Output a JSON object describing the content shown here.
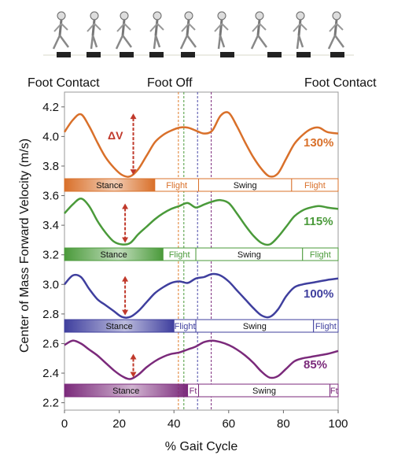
{
  "chart_data": {
    "type": "line",
    "xlabel": "% Gait Cycle",
    "ylabel": "Center of Mass Forward Velocity (m/s)",
    "xlim": [
      0,
      100
    ],
    "ylim": [
      2.15,
      4.3
    ],
    "x_ticks": [
      "0",
      "20",
      "40",
      "60",
      "80",
      "100"
    ],
    "y_ticks": [
      "2.2",
      "2.4",
      "2.6",
      "2.8",
      "3.0",
      "3.2",
      "3.4",
      "3.6",
      "3.8",
      "4.0",
      "4.2"
    ],
    "event_labels": [
      "Foot Contact",
      "Foot Off",
      "Foot Contact"
    ],
    "annotation": "ΔV",
    "foot_off_lines": [
      {
        "x": 33,
        "color": "#e07b2a"
      },
      {
        "x": 35,
        "color": "#4a9a3a"
      },
      {
        "x": 40,
        "color": "#4b4aa8"
      },
      {
        "x": 45,
        "color": "#7b2a7b"
      }
    ],
    "series": [
      {
        "name": "130%",
        "color": "#d9702a",
        "x": [
          0,
          3,
          6,
          9,
          12,
          15,
          18,
          21,
          24,
          27,
          30,
          33,
          36,
          39,
          42,
          45,
          48,
          51,
          54,
          57,
          60,
          63,
          66,
          69,
          72,
          75,
          78,
          81,
          84,
          87,
          90,
          93,
          96,
          100
        ],
        "values": [
          4.03,
          4.11,
          4.15,
          4.07,
          3.96,
          3.86,
          3.79,
          3.74,
          3.73,
          3.78,
          3.87,
          3.96,
          4.01,
          4.04,
          4.06,
          4.06,
          4.04,
          4.02,
          4.04,
          4.14,
          4.16,
          4.07,
          3.96,
          3.86,
          3.78,
          3.73,
          3.75,
          3.85,
          3.95,
          4.01,
          4.05,
          4.06,
          4.03,
          4.02
        ],
        "label": "130%",
        "phases": [
          {
            "label": "Stance",
            "start": 0,
            "end": 33,
            "filled": true
          },
          {
            "label": "Flight",
            "start": 33,
            "end": 49,
            "filled": false
          },
          {
            "label": "Swing",
            "start": 49,
            "end": 83,
            "filled": false
          },
          {
            "label": "Flight",
            "start": 83,
            "end": 100,
            "filled": false
          }
        ]
      },
      {
        "name": "115%",
        "color": "#4a9a3a",
        "x": [
          0,
          3,
          6,
          9,
          12,
          15,
          18,
          21,
          24,
          27,
          30,
          33,
          36,
          39,
          42,
          45,
          48,
          51,
          54,
          57,
          60,
          63,
          66,
          69,
          72,
          75,
          78,
          81,
          84,
          87,
          90,
          93,
          96,
          100
        ],
        "values": [
          3.48,
          3.54,
          3.58,
          3.53,
          3.43,
          3.35,
          3.29,
          3.27,
          3.28,
          3.34,
          3.39,
          3.44,
          3.48,
          3.51,
          3.53,
          3.55,
          3.52,
          3.54,
          3.56,
          3.57,
          3.55,
          3.48,
          3.4,
          3.33,
          3.28,
          3.27,
          3.32,
          3.39,
          3.46,
          3.5,
          3.52,
          3.53,
          3.52,
          3.51
        ],
        "label": "115%",
        "phases": [
          {
            "label": "Stance",
            "start": 0,
            "end": 36,
            "filled": true
          },
          {
            "label": "Flight",
            "start": 36,
            "end": 48,
            "filled": false
          },
          {
            "label": "Swing",
            "start": 48,
            "end": 87,
            "filled": false
          },
          {
            "label": "Flight",
            "start": 87,
            "end": 100,
            "filled": false
          }
        ]
      },
      {
        "name": "100%",
        "color": "#3f3f9e",
        "x": [
          0,
          3,
          6,
          9,
          12,
          15,
          18,
          21,
          24,
          27,
          30,
          33,
          36,
          39,
          42,
          45,
          48,
          51,
          54,
          57,
          60,
          63,
          66,
          69,
          72,
          75,
          78,
          81,
          84,
          87,
          90,
          93,
          96,
          100
        ],
        "values": [
          3.0,
          3.06,
          3.05,
          2.97,
          2.9,
          2.86,
          2.82,
          2.78,
          2.78,
          2.82,
          2.88,
          2.94,
          2.98,
          3.01,
          3.02,
          3.01,
          3.04,
          3.05,
          3.07,
          3.06,
          3.02,
          2.96,
          2.9,
          2.84,
          2.79,
          2.78,
          2.83,
          2.92,
          2.98,
          3.0,
          3.01,
          3.02,
          3.03,
          3.04
        ],
        "label": "100%",
        "phases": [
          {
            "label": "Stance",
            "start": 0,
            "end": 40,
            "filled": true
          },
          {
            "label": "Flight",
            "start": 40,
            "end": 48,
            "filled": false
          },
          {
            "label": "Swing",
            "start": 48,
            "end": 91,
            "filled": false
          },
          {
            "label": "Flight",
            "start": 91,
            "end": 100,
            "filled": false
          }
        ]
      },
      {
        "name": "85%",
        "color": "#7b2a7b",
        "x": [
          0,
          3,
          6,
          9,
          12,
          15,
          18,
          21,
          24,
          27,
          30,
          33,
          36,
          39,
          42,
          45,
          48,
          51,
          54,
          57,
          60,
          63,
          66,
          69,
          72,
          75,
          78,
          81,
          84,
          87,
          90,
          93,
          96,
          100
        ],
        "values": [
          2.59,
          2.62,
          2.6,
          2.56,
          2.52,
          2.47,
          2.42,
          2.38,
          2.36,
          2.39,
          2.44,
          2.48,
          2.51,
          2.53,
          2.54,
          2.56,
          2.58,
          2.61,
          2.62,
          2.61,
          2.59,
          2.56,
          2.52,
          2.47,
          2.41,
          2.37,
          2.38,
          2.43,
          2.48,
          2.5,
          2.51,
          2.52,
          2.53,
          2.55
        ],
        "label": "85%",
        "phases": [
          {
            "label": "Stance",
            "start": 0,
            "end": 45,
            "filled": true
          },
          {
            "label": "Ft",
            "start": 45,
            "end": 49,
            "filled": false
          },
          {
            "label": "Swing",
            "start": 49,
            "end": 97,
            "filled": false
          },
          {
            "label": "Ft",
            "start": 97,
            "end": 100,
            "filled": false
          }
        ]
      }
    ]
  }
}
